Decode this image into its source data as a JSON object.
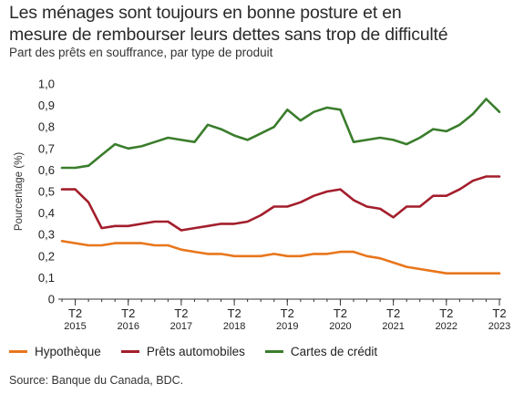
{
  "title_lines": [
    "Les ménages sont toujours en bonne posture et en",
    "mesure de rembourser leurs dettes sans trop de difficulté"
  ],
  "subtitle": "Part des prêts en souffrance, par type de produit",
  "source": "Source: Banque du Canada, BDC.",
  "colors": {
    "hypotheque": "#e8761c",
    "auto": "#a31e2c",
    "credit": "#3a7d2c",
    "axis": "#333333",
    "grid": "#dddddd"
  },
  "chart_data": {
    "type": "line",
    "ylabel": "Pourcentage (%)",
    "xlabel": "",
    "ylim": [
      0,
      1.0
    ],
    "yticks": [
      "0",
      "0,1",
      "0,2",
      "0,3",
      "0,4",
      "0,5",
      "0,6",
      "0,7",
      "0,8",
      "0,9",
      "1,0"
    ],
    "x_tick_labels": [
      {
        "q": "T2",
        "year": "2015"
      },
      {
        "q": "T2",
        "year": "2016"
      },
      {
        "q": "T2",
        "year": "2017"
      },
      {
        "q": "T2",
        "year": "2018"
      },
      {
        "q": "T2",
        "year": "2019"
      },
      {
        "q": "T2",
        "year": "2020"
      },
      {
        "q": "T2",
        "year": "2021"
      },
      {
        "q": "T2",
        "year": "2022"
      },
      {
        "q": "T2",
        "year": "2023"
      }
    ],
    "x": [
      "2015T1",
      "2015T2",
      "2015T3",
      "2015T4",
      "2016T1",
      "2016T2",
      "2016T3",
      "2016T4",
      "2017T1",
      "2017T2",
      "2017T3",
      "2017T4",
      "2018T1",
      "2018T2",
      "2018T3",
      "2018T4",
      "2019T1",
      "2019T2",
      "2019T3",
      "2019T4",
      "2020T1",
      "2020T2",
      "2020T3",
      "2020T4",
      "2021T1",
      "2021T2",
      "2021T3",
      "2021T4",
      "2022T1",
      "2022T2",
      "2022T3",
      "2022T4",
      "2023T1",
      "2023T2"
    ],
    "grid": false,
    "legend_position": "bottom",
    "series": [
      {
        "name": "Hypothèque",
        "color_key": "hypotheque",
        "values": [
          0.27,
          0.26,
          0.25,
          0.25,
          0.26,
          0.26,
          0.26,
          0.25,
          0.25,
          0.23,
          0.22,
          0.21,
          0.21,
          0.2,
          0.2,
          0.2,
          0.21,
          0.2,
          0.2,
          0.21,
          0.21,
          0.22,
          0.22,
          0.2,
          0.19,
          0.17,
          0.15,
          0.14,
          0.13,
          0.12,
          0.12,
          0.12,
          0.12,
          0.12
        ]
      },
      {
        "name": "Prêts automobiles",
        "color_key": "auto",
        "values": [
          0.51,
          0.51,
          0.45,
          0.33,
          0.34,
          0.34,
          0.35,
          0.36,
          0.36,
          0.32,
          0.33,
          0.34,
          0.35,
          0.35,
          0.36,
          0.39,
          0.43,
          0.43,
          0.45,
          0.48,
          0.5,
          0.51,
          0.46,
          0.43,
          0.42,
          0.38,
          0.43,
          0.43,
          0.48,
          0.48,
          0.51,
          0.55,
          0.57,
          0.57
        ]
      },
      {
        "name": "Cartes de crédit",
        "color_key": "credit",
        "values": [
          0.61,
          0.61,
          0.62,
          0.67,
          0.72,
          0.7,
          0.71,
          0.73,
          0.75,
          0.74,
          0.73,
          0.81,
          0.79,
          0.76,
          0.74,
          0.77,
          0.8,
          0.88,
          0.83,
          0.87,
          0.89,
          0.88,
          0.73,
          0.74,
          0.75,
          0.74,
          0.72,
          0.75,
          0.79,
          0.78,
          0.81,
          0.86,
          0.93,
          0.87
        ]
      }
    ]
  }
}
